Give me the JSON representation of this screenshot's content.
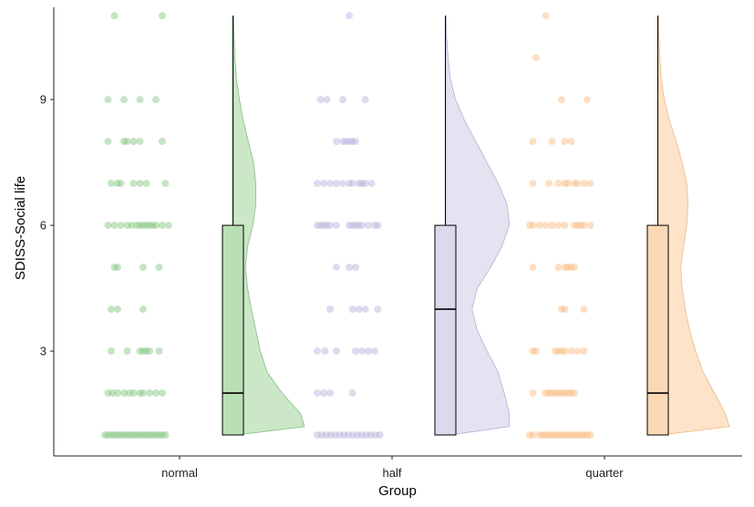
{
  "chart_data": {
    "type": "raincloud",
    "xlabel": "Group",
    "ylabel": "SDISS-Social life",
    "ylim": [
      0.5,
      11.2
    ],
    "yticks": [
      3,
      6,
      9
    ],
    "categories": [
      "normal",
      "half",
      "quarter"
    ],
    "grid": false,
    "groups": [
      {
        "name": "normal",
        "color": "#7fc47a",
        "fill": "#b9dfb4",
        "box": {
          "min": 1,
          "q1": 1,
          "median": 2,
          "q3": 6,
          "max": 11
        },
        "density": [
          [
            1.0,
            0.05
          ],
          [
            1.2,
            0.95
          ],
          [
            1.5,
            0.9
          ],
          [
            2.0,
            0.65
          ],
          [
            2.5,
            0.45
          ],
          [
            3.0,
            0.36
          ],
          [
            3.5,
            0.3
          ],
          [
            4.0,
            0.24
          ],
          [
            4.5,
            0.19
          ],
          [
            5.0,
            0.16
          ],
          [
            5.5,
            0.19
          ],
          [
            6.0,
            0.26
          ],
          [
            6.5,
            0.3
          ],
          [
            7.0,
            0.3
          ],
          [
            7.5,
            0.27
          ],
          [
            8.0,
            0.2
          ],
          [
            8.5,
            0.13
          ],
          [
            9.0,
            0.08
          ],
          [
            9.5,
            0.04
          ],
          [
            10.0,
            0.02
          ],
          [
            10.5,
            0.01
          ],
          [
            11.0,
            0.005
          ]
        ],
        "points": [
          [
            1,
            0.0
          ],
          [
            1,
            0.05
          ],
          [
            1,
            0.1
          ],
          [
            1,
            0.15
          ],
          [
            1,
            0.2
          ],
          [
            1,
            0.25
          ],
          [
            1,
            0.3
          ],
          [
            1,
            0.35
          ],
          [
            1,
            0.4
          ],
          [
            1,
            0.45
          ],
          [
            1,
            0.5
          ],
          [
            1,
            0.55
          ],
          [
            1,
            0.6
          ],
          [
            1,
            0.65
          ],
          [
            1,
            0.7
          ],
          [
            1,
            0.75
          ],
          [
            1,
            0.8
          ],
          [
            1,
            0.85
          ],
          [
            1,
            0.9
          ],
          [
            1,
            0.95
          ],
          [
            2,
            0.05
          ],
          [
            2,
            0.12
          ],
          [
            2,
            0.2
          ],
          [
            2,
            0.3
          ],
          [
            2,
            0.38
          ],
          [
            2,
            0.45
          ],
          [
            2,
            0.55
          ],
          [
            2,
            0.6
          ],
          [
            2,
            0.7
          ],
          [
            2,
            0.8
          ],
          [
            2,
            0.9
          ],
          [
            3,
            0.1
          ],
          [
            3,
            0.35
          ],
          [
            3,
            0.55
          ],
          [
            3,
            0.6
          ],
          [
            3,
            0.65
          ],
          [
            3,
            0.7
          ],
          [
            3,
            0.85
          ],
          [
            4,
            0.1
          ],
          [
            4,
            0.2
          ],
          [
            4,
            0.6
          ],
          [
            5,
            0.15
          ],
          [
            5,
            0.2
          ],
          [
            5,
            0.6
          ],
          [
            5,
            0.85
          ],
          [
            6,
            0.05
          ],
          [
            6,
            0.15
          ],
          [
            6,
            0.25
          ],
          [
            6,
            0.35
          ],
          [
            6,
            0.42
          ],
          [
            6,
            0.5
          ],
          [
            6,
            0.55
          ],
          [
            6,
            0.6
          ],
          [
            6,
            0.65
          ],
          [
            6,
            0.7
          ],
          [
            6,
            0.75
          ],
          [
            6,
            0.8
          ],
          [
            6,
            0.9
          ],
          [
            6,
            1.0
          ],
          [
            7,
            0.1
          ],
          [
            7,
            0.2
          ],
          [
            7,
            0.25
          ],
          [
            7,
            0.45
          ],
          [
            7,
            0.55
          ],
          [
            7,
            0.65
          ],
          [
            7,
            0.95
          ],
          [
            8,
            0.05
          ],
          [
            8,
            0.3
          ],
          [
            8,
            0.35
          ],
          [
            8,
            0.45
          ],
          [
            8,
            0.55
          ],
          [
            8,
            0.9
          ],
          [
            9,
            0.05
          ],
          [
            9,
            0.3
          ],
          [
            9,
            0.55
          ],
          [
            9,
            0.8
          ],
          [
            11,
            0.15
          ],
          [
            11,
            0.9
          ]
        ]
      },
      {
        "name": "half",
        "color": "#b7aed9",
        "fill": "#ddd8ec",
        "box": {
          "min": 1,
          "q1": 1,
          "median": 4,
          "q3": 6,
          "max": 11
        },
        "density": [
          [
            1.0,
            0.05
          ],
          [
            1.2,
            0.85
          ],
          [
            1.5,
            0.85
          ],
          [
            2.0,
            0.78
          ],
          [
            2.5,
            0.7
          ],
          [
            3.0,
            0.55
          ],
          [
            3.5,
            0.42
          ],
          [
            4.0,
            0.35
          ],
          [
            4.5,
            0.42
          ],
          [
            5.0,
            0.6
          ],
          [
            5.5,
            0.75
          ],
          [
            6.0,
            0.85
          ],
          [
            6.5,
            0.82
          ],
          [
            7.0,
            0.7
          ],
          [
            7.5,
            0.55
          ],
          [
            8.0,
            0.4
          ],
          [
            8.5,
            0.25
          ],
          [
            9.0,
            0.13
          ],
          [
            9.5,
            0.06
          ],
          [
            10.0,
            0.03
          ],
          [
            10.5,
            0.01
          ],
          [
            11.0,
            0.005
          ]
        ],
        "points": [
          [
            1,
            0.0
          ],
          [
            1,
            0.07
          ],
          [
            1,
            0.14
          ],
          [
            1,
            0.21
          ],
          [
            1,
            0.28
          ],
          [
            1,
            0.35
          ],
          [
            1,
            0.42
          ],
          [
            1,
            0.49
          ],
          [
            1,
            0.56
          ],
          [
            1,
            0.63
          ],
          [
            1,
            0.7
          ],
          [
            1,
            0.77
          ],
          [
            1,
            0.84
          ],
          [
            1,
            0.91
          ],
          [
            1,
            0.98
          ],
          [
            2,
            0.0
          ],
          [
            2,
            0.1
          ],
          [
            2,
            0.2
          ],
          [
            2,
            0.55
          ],
          [
            3,
            0.0
          ],
          [
            3,
            0.12
          ],
          [
            3,
            0.3
          ],
          [
            3,
            0.6
          ],
          [
            3,
            0.7
          ],
          [
            3,
            0.8
          ],
          [
            3,
            0.9
          ],
          [
            4,
            0.2
          ],
          [
            4,
            0.55
          ],
          [
            4,
            0.65
          ],
          [
            4,
            0.75
          ],
          [
            4,
            0.95
          ],
          [
            5,
            0.3
          ],
          [
            5,
            0.5
          ],
          [
            5,
            0.6
          ],
          [
            6,
            0.0
          ],
          [
            6,
            0.05
          ],
          [
            6,
            0.1
          ],
          [
            6,
            0.15
          ],
          [
            6,
            0.2
          ],
          [
            6,
            0.3
          ],
          [
            6,
            0.5
          ],
          [
            6,
            0.55
          ],
          [
            6,
            0.6
          ],
          [
            6,
            0.65
          ],
          [
            6,
            0.7
          ],
          [
            6,
            0.8
          ],
          [
            6,
            0.9
          ],
          [
            6,
            0.95
          ],
          [
            7,
            0.0
          ],
          [
            7,
            0.1
          ],
          [
            7,
            0.2
          ],
          [
            7,
            0.3
          ],
          [
            7,
            0.4
          ],
          [
            7,
            0.5
          ],
          [
            7,
            0.55
          ],
          [
            7,
            0.65
          ],
          [
            7,
            0.7
          ],
          [
            7,
            0.75
          ],
          [
            7,
            0.85
          ],
          [
            8,
            0.3
          ],
          [
            8,
            0.4
          ],
          [
            8,
            0.45
          ],
          [
            8,
            0.5
          ],
          [
            8,
            0.55
          ],
          [
            8,
            0.6
          ],
          [
            9,
            0.05
          ],
          [
            9,
            0.15
          ],
          [
            9,
            0.4
          ],
          [
            9,
            0.75
          ],
          [
            11,
            0.5
          ]
        ]
      },
      {
        "name": "quarter",
        "color": "#f8b77c",
        "fill": "#fcd9b6",
        "box": {
          "min": 1,
          "q1": 1,
          "median": 2,
          "q3": 6,
          "max": 11
        },
        "density": [
          [
            1.0,
            0.05
          ],
          [
            1.2,
            0.95
          ],
          [
            1.5,
            0.9
          ],
          [
            2.0,
            0.75
          ],
          [
            2.5,
            0.6
          ],
          [
            3.0,
            0.5
          ],
          [
            3.5,
            0.42
          ],
          [
            4.0,
            0.36
          ],
          [
            4.5,
            0.32
          ],
          [
            5.0,
            0.3
          ],
          [
            5.5,
            0.34
          ],
          [
            6.0,
            0.38
          ],
          [
            6.5,
            0.4
          ],
          [
            7.0,
            0.38
          ],
          [
            7.5,
            0.32
          ],
          [
            8.0,
            0.24
          ],
          [
            8.5,
            0.15
          ],
          [
            9.0,
            0.08
          ],
          [
            9.5,
            0.04
          ],
          [
            10.0,
            0.02
          ],
          [
            10.5,
            0.01
          ],
          [
            11.0,
            0.005
          ]
        ],
        "points": [
          [
            1,
            0.0
          ],
          [
            1,
            0.05
          ],
          [
            1,
            0.15
          ],
          [
            1,
            0.2
          ],
          [
            1,
            0.25
          ],
          [
            1,
            0.3
          ],
          [
            1,
            0.35
          ],
          [
            1,
            0.4
          ],
          [
            1,
            0.45
          ],
          [
            1,
            0.5
          ],
          [
            1,
            0.55
          ],
          [
            1,
            0.6
          ],
          [
            1,
            0.65
          ],
          [
            1,
            0.7
          ],
          [
            1,
            0.75
          ],
          [
            1,
            0.8
          ],
          [
            1,
            0.85
          ],
          [
            1,
            0.9
          ],
          [
            1,
            0.95
          ],
          [
            2,
            0.05
          ],
          [
            2,
            0.25
          ],
          [
            2,
            0.3
          ],
          [
            2,
            0.35
          ],
          [
            2,
            0.4
          ],
          [
            2,
            0.45
          ],
          [
            2,
            0.5
          ],
          [
            2,
            0.55
          ],
          [
            2,
            0.6
          ],
          [
            2,
            0.65
          ],
          [
            2,
            0.7
          ],
          [
            3,
            0.05
          ],
          [
            3,
            0.1
          ],
          [
            3,
            0.4
          ],
          [
            3,
            0.45
          ],
          [
            3,
            0.5
          ],
          [
            3,
            0.55
          ],
          [
            3,
            0.65
          ],
          [
            3,
            0.75
          ],
          [
            3,
            0.85
          ],
          [
            4,
            0.5
          ],
          [
            4,
            0.55
          ],
          [
            4,
            0.85
          ],
          [
            5,
            0.05
          ],
          [
            5,
            0.45
          ],
          [
            5,
            0.55
          ],
          [
            5,
            0.6
          ],
          [
            5,
            0.65
          ],
          [
            5,
            0.7
          ],
          [
            6,
            0.0
          ],
          [
            6,
            0.05
          ],
          [
            6,
            0.15
          ],
          [
            6,
            0.25
          ],
          [
            6,
            0.35
          ],
          [
            6,
            0.45
          ],
          [
            6,
            0.55
          ],
          [
            6,
            0.7
          ],
          [
            6,
            0.75
          ],
          [
            6,
            0.8
          ],
          [
            6,
            0.85
          ],
          [
            6,
            0.95
          ],
          [
            7,
            0.05
          ],
          [
            7,
            0.3
          ],
          [
            7,
            0.45
          ],
          [
            7,
            0.55
          ],
          [
            7,
            0.6
          ],
          [
            7,
            0.7
          ],
          [
            7,
            0.75
          ],
          [
            7,
            0.85
          ],
          [
            7,
            0.95
          ],
          [
            8,
            0.05
          ],
          [
            8,
            0.35
          ],
          [
            8,
            0.55
          ],
          [
            8,
            0.65
          ],
          [
            9,
            0.5
          ],
          [
            9,
            0.9
          ],
          [
            10,
            0.1
          ],
          [
            11,
            0.25
          ]
        ]
      }
    ]
  }
}
